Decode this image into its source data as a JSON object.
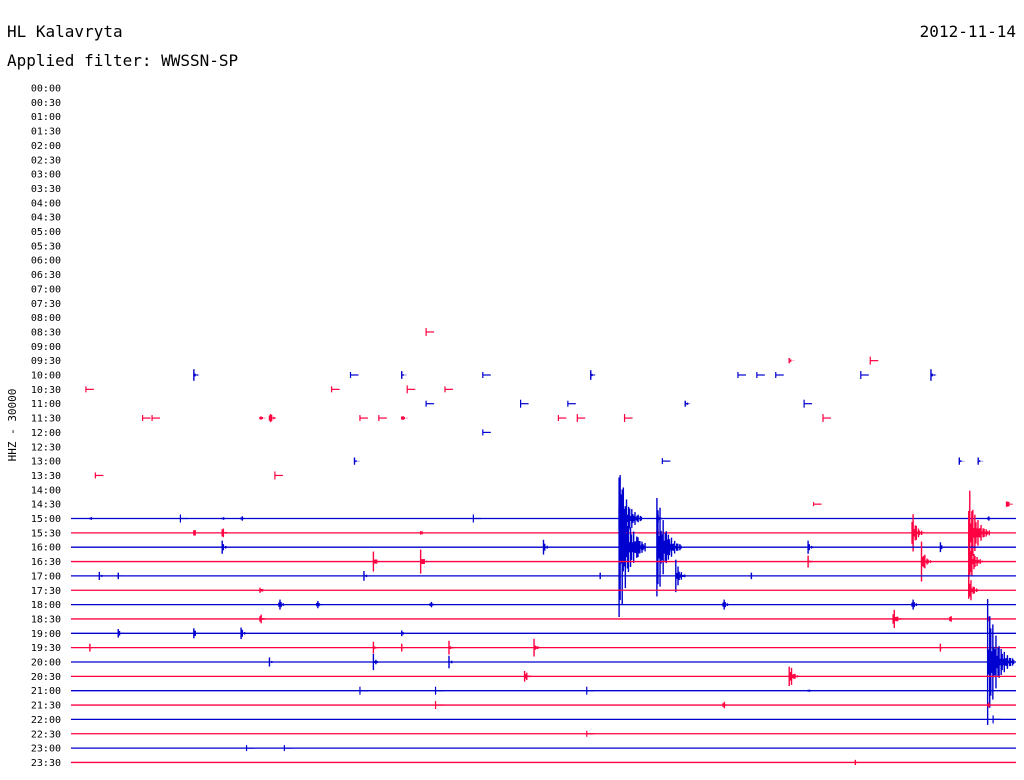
{
  "header": {
    "station": "HL Kalavryta",
    "date": "2012-11-14",
    "filter": "Applied filter: WWSSN-SP"
  },
  "chart_data": {
    "type": "line",
    "title": "HL Kalavryta",
    "ylabel": "HHZ - 30000",
    "colors": [
      "#0000d0",
      "#ff0040"
    ],
    "traces": [
      {
        "label": "00:00",
        "active": false,
        "events": []
      },
      {
        "label": "00:30",
        "active": false,
        "events": []
      },
      {
        "label": "01:00",
        "active": false,
        "events": []
      },
      {
        "label": "01:30",
        "active": false,
        "events": []
      },
      {
        "label": "02:00",
        "active": false,
        "events": []
      },
      {
        "label": "02:30",
        "active": false,
        "events": []
      },
      {
        "label": "03:00",
        "active": false,
        "events": []
      },
      {
        "label": "03:30",
        "active": false,
        "events": []
      },
      {
        "label": "04:00",
        "active": false,
        "events": []
      },
      {
        "label": "04:30",
        "active": false,
        "events": []
      },
      {
        "label": "05:00",
        "active": false,
        "events": []
      },
      {
        "label": "05:30",
        "active": false,
        "events": []
      },
      {
        "label": "06:00",
        "active": false,
        "events": []
      },
      {
        "label": "06:30",
        "active": false,
        "events": []
      },
      {
        "label": "07:00",
        "active": false,
        "events": []
      },
      {
        "label": "07:30",
        "active": false,
        "events": []
      },
      {
        "label": "08:00",
        "active": false,
        "events": []
      },
      {
        "label": "08:30",
        "active": false,
        "events": [
          [
            0.38,
            3
          ]
        ]
      },
      {
        "label": "09:00",
        "active": false,
        "events": []
      },
      {
        "label": "09:30",
        "active": false,
        "events": [
          [
            0.76,
            4
          ],
          [
            0.85,
            3
          ]
        ]
      },
      {
        "label": "10:00",
        "active": false,
        "events": [
          [
            0.13,
            6
          ],
          [
            0.3,
            2
          ],
          [
            0.35,
            4
          ],
          [
            0.44,
            2
          ],
          [
            0.55,
            5
          ],
          [
            0.71,
            2
          ],
          [
            0.73,
            2
          ],
          [
            0.75,
            2
          ],
          [
            0.84,
            3
          ],
          [
            0.91,
            6
          ]
        ]
      },
      {
        "label": "10:30",
        "active": false,
        "events": [
          [
            0.02,
            2
          ],
          [
            0.28,
            2
          ],
          [
            0.36,
            3
          ],
          [
            0.4,
            2
          ]
        ]
      },
      {
        "label": "11:00",
        "active": false,
        "events": [
          [
            0.38,
            2
          ],
          [
            0.48,
            3
          ],
          [
            0.53,
            2
          ],
          [
            0.65,
            5
          ],
          [
            0.78,
            3
          ]
        ]
      },
      {
        "label": "11:30",
        "active": false,
        "events": [
          [
            0.08,
            2
          ],
          [
            0.09,
            2
          ],
          [
            0.2,
            5
          ],
          [
            0.21,
            10
          ],
          [
            0.31,
            2
          ],
          [
            0.33,
            2
          ],
          [
            0.35,
            6
          ],
          [
            0.52,
            2
          ],
          [
            0.54,
            3
          ],
          [
            0.59,
            3
          ],
          [
            0.8,
            3
          ]
        ]
      },
      {
        "label": "12:00",
        "active": false,
        "events": [
          [
            0.44,
            2
          ]
        ]
      },
      {
        "label": "12:30",
        "active": false,
        "events": []
      },
      {
        "label": "13:00",
        "active": false,
        "events": [
          [
            0.3,
            4
          ],
          [
            0.63,
            2
          ],
          [
            0.94,
            4
          ],
          [
            0.96,
            4
          ]
        ]
      },
      {
        "label": "13:30",
        "active": false,
        "events": [
          [
            0.03,
            2
          ],
          [
            0.22,
            3
          ]
        ]
      },
      {
        "label": "14:00",
        "active": false,
        "events": []
      },
      {
        "label": "14:30",
        "active": false,
        "events": [
          [
            0.79,
            1
          ],
          [
            0.99,
            8
          ]
        ]
      },
      {
        "label": "15:00",
        "active": true,
        "events": [
          [
            0.02,
            4
          ],
          [
            0.12,
            3
          ],
          [
            0.16,
            4
          ],
          [
            0.18,
            5
          ],
          [
            0.43,
            3
          ],
          [
            0.58,
            55
          ],
          [
            0.62,
            8
          ],
          [
            0.97,
            5
          ]
        ]
      },
      {
        "label": "15:30",
        "active": true,
        "events": [
          [
            0.13,
            6
          ],
          [
            0.16,
            8
          ],
          [
            0.37,
            4
          ],
          [
            0.62,
            5
          ],
          [
            0.89,
            25
          ],
          [
            0.95,
            50
          ]
        ]
      },
      {
        "label": "16:00",
        "active": true,
        "events": [
          [
            0.16,
            8
          ],
          [
            0.5,
            9
          ],
          [
            0.58,
            85
          ],
          [
            0.6,
            12
          ],
          [
            0.62,
            60
          ],
          [
            0.63,
            16
          ],
          [
            0.78,
            8
          ],
          [
            0.92,
            6
          ]
        ]
      },
      {
        "label": "16:30",
        "active": true,
        "events": [
          [
            0.32,
            10
          ],
          [
            0.37,
            12
          ],
          [
            0.78,
            6
          ],
          [
            0.9,
            20
          ],
          [
            0.95,
            30
          ]
        ]
      },
      {
        "label": "17:00",
        "active": true,
        "events": [
          [
            0.03,
            5
          ],
          [
            0.05,
            4
          ],
          [
            0.31,
            6
          ],
          [
            0.56,
            4
          ],
          [
            0.64,
            20
          ],
          [
            0.72,
            4
          ]
        ]
      },
      {
        "label": "17:30",
        "active": true,
        "events": [
          [
            0.2,
            6
          ],
          [
            0.95,
            20
          ]
        ]
      },
      {
        "label": "18:00",
        "active": true,
        "events": [
          [
            0.22,
            10
          ],
          [
            0.26,
            8
          ],
          [
            0.38,
            7
          ],
          [
            0.69,
            10
          ],
          [
            0.89,
            10
          ]
        ]
      },
      {
        "label": "18:30",
        "active": true,
        "events": [
          [
            0.2,
            8
          ],
          [
            0.87,
            14
          ],
          [
            0.93,
            6
          ],
          [
            0.97,
            5
          ]
        ]
      },
      {
        "label": "19:00",
        "active": true,
        "events": [
          [
            0.05,
            6
          ],
          [
            0.13,
            7
          ],
          [
            0.18,
            8
          ],
          [
            0.35,
            4
          ]
        ]
      },
      {
        "label": "19:30",
        "active": true,
        "events": [
          [
            0.02,
            4
          ],
          [
            0.32,
            6
          ],
          [
            0.35,
            4
          ],
          [
            0.4,
            7
          ],
          [
            0.49,
            9
          ],
          [
            0.92,
            4
          ]
        ]
      },
      {
        "label": "20:00",
        "active": true,
        "events": [
          [
            0.21,
            5
          ],
          [
            0.32,
            9
          ],
          [
            0.4,
            7
          ],
          [
            0.97,
            70
          ]
        ]
      },
      {
        "label": "20:30",
        "active": true,
        "events": [
          [
            0.48,
            10
          ],
          [
            0.76,
            18
          ]
        ]
      },
      {
        "label": "21:00",
        "active": true,
        "events": [
          [
            0.31,
            3
          ],
          [
            0.39,
            3
          ],
          [
            0.55,
            3
          ],
          [
            0.78,
            4
          ]
        ]
      },
      {
        "label": "21:30",
        "active": true,
        "events": [
          [
            0.39,
            3
          ],
          [
            0.69,
            7
          ],
          [
            0.97,
            5
          ]
        ]
      },
      {
        "label": "22:00",
        "active": true,
        "events": [
          [
            0.98,
            3
          ]
        ]
      },
      {
        "label": "22:30",
        "active": true,
        "events": [
          [
            0.55,
            2
          ]
        ]
      },
      {
        "label": "23:00",
        "active": true,
        "events": [
          [
            0.19,
            2
          ],
          [
            0.23,
            2
          ]
        ]
      },
      {
        "label": "23:30",
        "active": true,
        "events": [
          [
            0.83,
            4
          ]
        ]
      }
    ]
  }
}
